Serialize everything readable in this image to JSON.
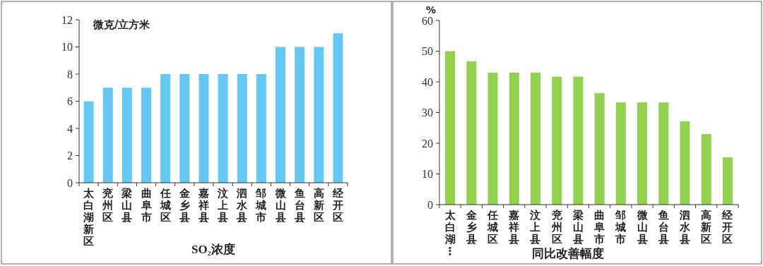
{
  "chart_data": [
    {
      "type": "bar",
      "ylabel": "微克/立方米",
      "xlabel": "SO₂浓度",
      "categories": [
        "太白湖新区",
        "兖州区",
        "梁山县",
        "曲阜市",
        "任城区",
        "金乡县",
        "嘉祥县",
        "汶上县",
        "泗水县",
        "邹城市",
        "微山县",
        "鱼台县",
        "高新区",
        "经开区"
      ],
      "values": [
        6,
        7,
        7,
        7,
        8,
        8,
        8,
        8,
        8,
        8,
        10,
        10,
        10,
        11
      ],
      "color": "#66c7f4",
      "ylim": [
        0,
        12
      ],
      "yticks": [
        0,
        2,
        4,
        6,
        8,
        10,
        12
      ]
    },
    {
      "type": "bar",
      "ylabel": "%",
      "xlabel": "同比改善幅度",
      "categories": [
        "太白湖⋮",
        "金乡县",
        "任城区",
        "嘉祥县",
        "汶上县",
        "兖州区",
        "梁山县",
        "曲阜市",
        "邹城市",
        "微山县",
        "鱼台县",
        "泗水县",
        "高新区",
        "经开区"
      ],
      "values": [
        50,
        46.7,
        43,
        43,
        43,
        41.7,
        41.7,
        36.3,
        33.3,
        33.3,
        33.3,
        27.1,
        23,
        15.4
      ],
      "color": "#92d050",
      "ylim": [
        0,
        60
      ],
      "yticks": [
        0,
        10,
        20,
        30,
        40,
        50,
        60
      ]
    }
  ]
}
